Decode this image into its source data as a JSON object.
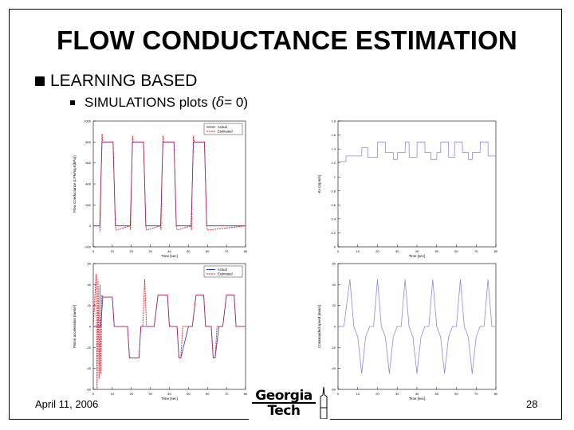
{
  "slide": {
    "title": "FLOW CONDUCTANCE ESTIMATION",
    "bullet1": "LEARNING BASED",
    "bullet2_prefix": "SIMULATIONS plots (",
    "bullet2_symbol": "δ",
    "bullet2_suffix": " = 0)",
    "date": "April 11, 2006",
    "page_number": "28",
    "logo_line1": "Georgia",
    "logo_line2": "Tech"
  },
  "colors": {
    "actual": "#2a2ad0",
    "estimated": "#e0202a",
    "command": "#8a8ae0"
  },
  "chart_data": [
    {
      "type": "line",
      "ylabel": "Flow Conductance (LPM/sq.rt(kPa))",
      "xlabel": "Time [sec]",
      "xlim": [
        0,
        80
      ],
      "ylim": [
        -200,
        1000
      ],
      "x_ticks": [
        "0",
        "10",
        "20",
        "30",
        "40",
        "50",
        "60",
        "70",
        "80"
      ],
      "y_ticks": [
        "-200",
        "0",
        "200",
        "400",
        "600",
        "800",
        "1000"
      ],
      "legend": [
        "Actual",
        "Estimated"
      ],
      "legend_position": "top-right",
      "series": [
        {
          "name": "Actual",
          "x": [
            0,
            3.4,
            4,
            4.6,
            10.4,
            11,
            11.6,
            19.4,
            20,
            20.6,
            26.4,
            27,
            27.6,
            35.4,
            36,
            36.6,
            42.4,
            43,
            43.6,
            51.4,
            52,
            52.6,
            58.4,
            59,
            59.6,
            80
          ],
          "y": [
            0,
            0,
            400,
            800,
            800,
            400,
            0,
            0,
            400,
            800,
            800,
            400,
            0,
            0,
            400,
            800,
            800,
            400,
            0,
            0,
            400,
            800,
            800,
            400,
            0,
            0
          ]
        },
        {
          "name": "Estimated",
          "x": [
            0,
            3.4,
            3.6,
            4,
            4.6,
            5,
            10.4,
            11,
            11.6,
            12,
            19.4,
            19.6,
            20,
            20.6,
            21,
            26.4,
            27,
            27.6,
            28,
            35.4,
            35.6,
            36,
            36.6,
            37,
            42.4,
            43,
            43.6,
            44,
            51.4,
            51.6,
            52,
            52.6,
            53,
            58.4,
            59,
            59.6,
            60,
            80
          ],
          "y": [
            0,
            0,
            -60,
            400,
            880,
            800,
            800,
            400,
            0,
            -40,
            0,
            -40,
            400,
            860,
            800,
            800,
            400,
            0,
            -40,
            0,
            -40,
            400,
            860,
            800,
            800,
            400,
            0,
            -40,
            0,
            -40,
            400,
            860,
            800,
            800,
            400,
            0,
            -40,
            0
          ]
        }
      ]
    },
    {
      "type": "line",
      "ylabel": "Kv (sq.m/s)",
      "xlabel": "Time [sec]",
      "xlim": [
        0,
        80
      ],
      "ylim": [
        0,
        1.8
      ],
      "x_ticks": [
        "0",
        "10",
        "20",
        "30",
        "40",
        "50",
        "60",
        "70",
        "80"
      ],
      "y_ticks": [
        "0",
        "0.2",
        "0.4",
        "0.6",
        "0.8",
        "1",
        "1.2",
        "1.4",
        "1.6",
        "1.8"
      ],
      "series": [
        {
          "name": "",
          "x": [
            0,
            4,
            4.1,
            12,
            12.1,
            15,
            15.1,
            20,
            20.1,
            24,
            24.1,
            28,
            28.1,
            30,
            30.1,
            34,
            34.1,
            36,
            36.1,
            40,
            40.1,
            44,
            44.1,
            47,
            47.1,
            50,
            50.1,
            52,
            52.1,
            56,
            56.1,
            59,
            59.1,
            63,
            63.1,
            66,
            66.1,
            68,
            68.1,
            72,
            72.1,
            76,
            76.1,
            80
          ],
          "y": [
            1.22,
            1.22,
            1.3,
            1.3,
            1.42,
            1.42,
            1.28,
            1.28,
            1.5,
            1.5,
            1.35,
            1.35,
            1.25,
            1.25,
            1.35,
            1.35,
            1.5,
            1.5,
            1.28,
            1.28,
            1.5,
            1.5,
            1.35,
            1.35,
            1.25,
            1.25,
            1.35,
            1.35,
            1.5,
            1.5,
            1.28,
            1.28,
            1.5,
            1.5,
            1.35,
            1.35,
            1.25,
            1.25,
            1.35,
            1.35,
            1.5,
            1.5,
            1.3,
            1.3
          ]
        }
      ]
    },
    {
      "type": "line",
      "ylabel": "Piston acceleration [mm/s²]",
      "xlabel": "Time [sec]",
      "xlim": [
        0,
        80
      ],
      "ylim": [
        -60,
        60
      ],
      "x_ticks": [
        "0",
        "10",
        "20",
        "30",
        "40",
        "50",
        "60",
        "70",
        "80"
      ],
      "y_ticks": [
        "-60",
        "-40",
        "-20",
        "0",
        "20",
        "40",
        "60"
      ],
      "legend": [
        "Actual",
        "Estimated"
      ],
      "legend_position": "top-right",
      "series": [
        {
          "name": "Actual",
          "x": [
            0,
            2,
            4,
            5,
            10,
            11,
            12,
            18,
            19,
            24,
            25,
            26,
            30,
            32,
            34,
            35,
            39,
            40,
            44,
            45,
            46,
            50,
            52,
            54,
            55,
            58,
            59,
            62,
            63,
            64,
            66,
            68,
            70,
            71,
            74,
            75,
            78,
            79,
            80
          ],
          "y": [
            0,
            0,
            0,
            28,
            28,
            0,
            0,
            0,
            -30,
            -30,
            0,
            0,
            0,
            0,
            30,
            30,
            30,
            0,
            0,
            -30,
            -30,
            0,
            0,
            30,
            30,
            30,
            0,
            0,
            -30,
            -30,
            0,
            0,
            30,
            30,
            30,
            0,
            0,
            0,
            0
          ]
        },
        {
          "name": "Estimated",
          "x": [
            0,
            1.5,
            2,
            2.5,
            3,
            3.5,
            4,
            4.5,
            5,
            6,
            10,
            11,
            12,
            18,
            19,
            24,
            25,
            26,
            27,
            28,
            30,
            32,
            34,
            35,
            39,
            40,
            44,
            45,
            46,
            47,
            50,
            52,
            54,
            55,
            58,
            59,
            62,
            63,
            64,
            65,
            66,
            68,
            70,
            71,
            74,
            75,
            78,
            79,
            80
          ],
          "y": [
            0,
            50,
            -60,
            45,
            -50,
            40,
            -45,
            30,
            28,
            28,
            28,
            0,
            0,
            0,
            -30,
            -30,
            0,
            0,
            45,
            0,
            0,
            0,
            30,
            30,
            30,
            0,
            0,
            -30,
            -30,
            0,
            0,
            0,
            30,
            30,
            30,
            0,
            0,
            -30,
            -30,
            0,
            0,
            0,
            30,
            30,
            30,
            0,
            0,
            0,
            0
          ]
        }
      ]
    },
    {
      "type": "line",
      "ylabel": "Commanded speed [mm/s]",
      "xlabel": "Time [sec]",
      "xlim": [
        0,
        80
      ],
      "ylim": [
        -60,
        60
      ],
      "x_ticks": [
        "0",
        "10",
        "20",
        "30",
        "40",
        "50",
        "60",
        "70",
        "80"
      ],
      "y_ticks": [
        "-60",
        "-40",
        "-20",
        "0",
        "20",
        "40",
        "60"
      ],
      "series": [
        {
          "name": "",
          "x": [
            0,
            3,
            6,
            8,
            10,
            12,
            14,
            16,
            18,
            20,
            22,
            24,
            26,
            28,
            30,
            32,
            34,
            36,
            38,
            40,
            42,
            44,
            46,
            48,
            50,
            52,
            54,
            56,
            58,
            60,
            62,
            64,
            66,
            68,
            70,
            72,
            74,
            76,
            78,
            80
          ],
          "y": [
            0,
            0,
            45,
            0,
            -10,
            -45,
            -10,
            0,
            0,
            45,
            0,
            -10,
            -45,
            -10,
            0,
            0,
            45,
            0,
            -10,
            -45,
            -10,
            0,
            0,
            45,
            0,
            -10,
            -45,
            -10,
            0,
            0,
            45,
            0,
            -10,
            -45,
            -10,
            0,
            0,
            45,
            0,
            0
          ]
        }
      ]
    }
  ]
}
